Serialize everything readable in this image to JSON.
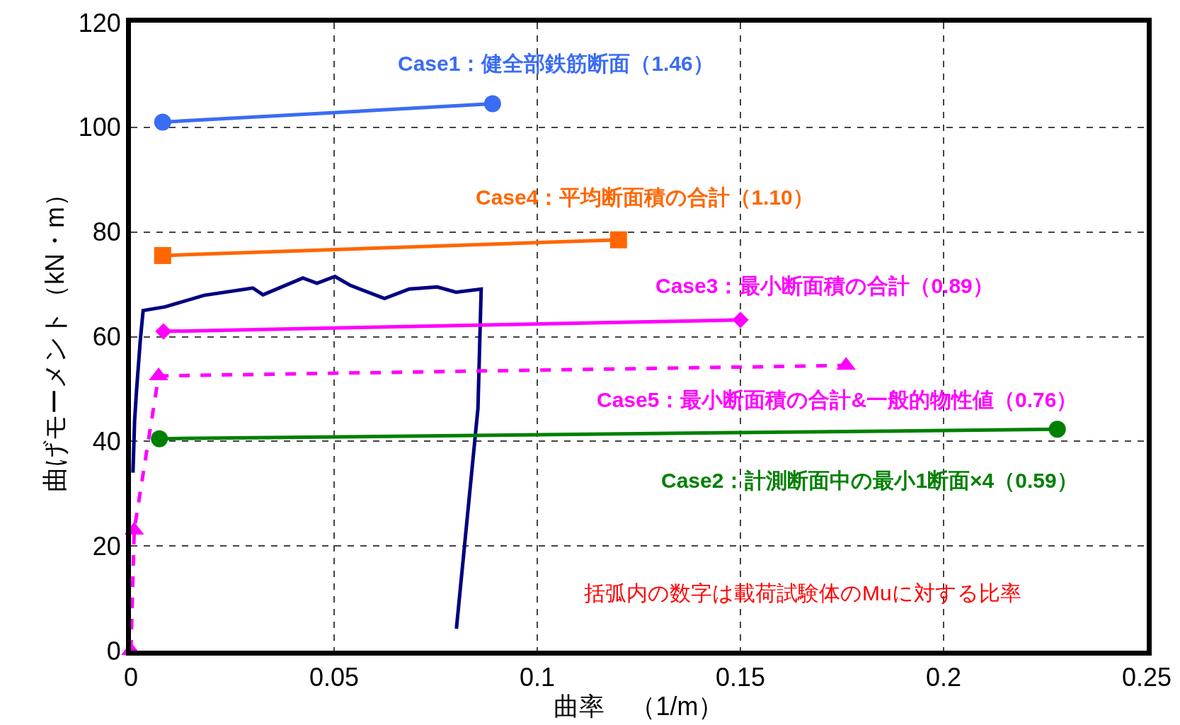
{
  "chart_data": {
    "type": "line",
    "xlabel": "曲率　（1/m）",
    "ylabel": "曲げモーメント（kN・m）",
    "xlim": [
      0,
      0.25
    ],
    "xticks": [
      0,
      0.05,
      0.1,
      0.15,
      0.2,
      0.25
    ],
    "ylim": [
      0,
      120
    ],
    "yticks": [
      0,
      20,
      40,
      60,
      80,
      100,
      120
    ],
    "grid": true,
    "legend": false,
    "series": [
      {
        "color": "#000080",
        "marker": "none",
        "x": [
          0.0005,
          0.0009,
          0.0014,
          0.0023,
          0.003,
          0.0084,
          0.018,
          0.03,
          0.0325,
          0.0423,
          0.0458,
          0.0502,
          0.054,
          0.0624,
          0.0685,
          0.0754,
          0.08,
          0.0862,
          0.0854,
          0.0801
        ],
        "values": [
          34,
          44,
          50,
          59.3,
          65,
          65.7,
          67.9,
          69.3,
          68,
          71.2,
          70.2,
          71.5,
          69.8,
          67.3,
          69.1,
          69.5,
          68.5,
          69.1,
          46.3,
          4.2
        ]
      },
      {
        "name": "Case1：健全部鉄筋断面（1.46）",
        "color": "#3a6cf4",
        "marker": "circle",
        "x": [
          0.0078,
          0.089
        ],
        "values": [
          101,
          104.5
        ]
      },
      {
        "name": "Case2：計測断面中の最小1断面×4（0.59）",
        "color": "#008000",
        "marker": "circle",
        "x": [
          0.007,
          0.228
        ],
        "values": [
          40.5,
          42.3
        ]
      },
      {
        "name": "Case3：最小断面積の合計（0.89）",
        "color": "#ff00ff",
        "marker": "diamond",
        "x": [
          0.008,
          0.15
        ],
        "values": [
          61,
          63.2
        ]
      },
      {
        "name": "Case4：平均断面積の合計（1.10）",
        "color": "#ff6600",
        "marker": "square",
        "x": [
          0.0078,
          0.12
        ],
        "values": [
          75.5,
          78.5
        ]
      },
      {
        "name": "Case5：最小断面積の合計&一般的物性値（0.76）",
        "color": "#ff00ff",
        "marker": "triangle",
        "line_style": "dashed",
        "x": [
          0,
          0.0008,
          0.0068,
          0.176
        ],
        "values": [
          0,
          23,
          52.5,
          54.5
        ]
      }
    ],
    "annotations": [
      "括弧内の数字は載荷試験体のMuに対する比率"
    ]
  }
}
